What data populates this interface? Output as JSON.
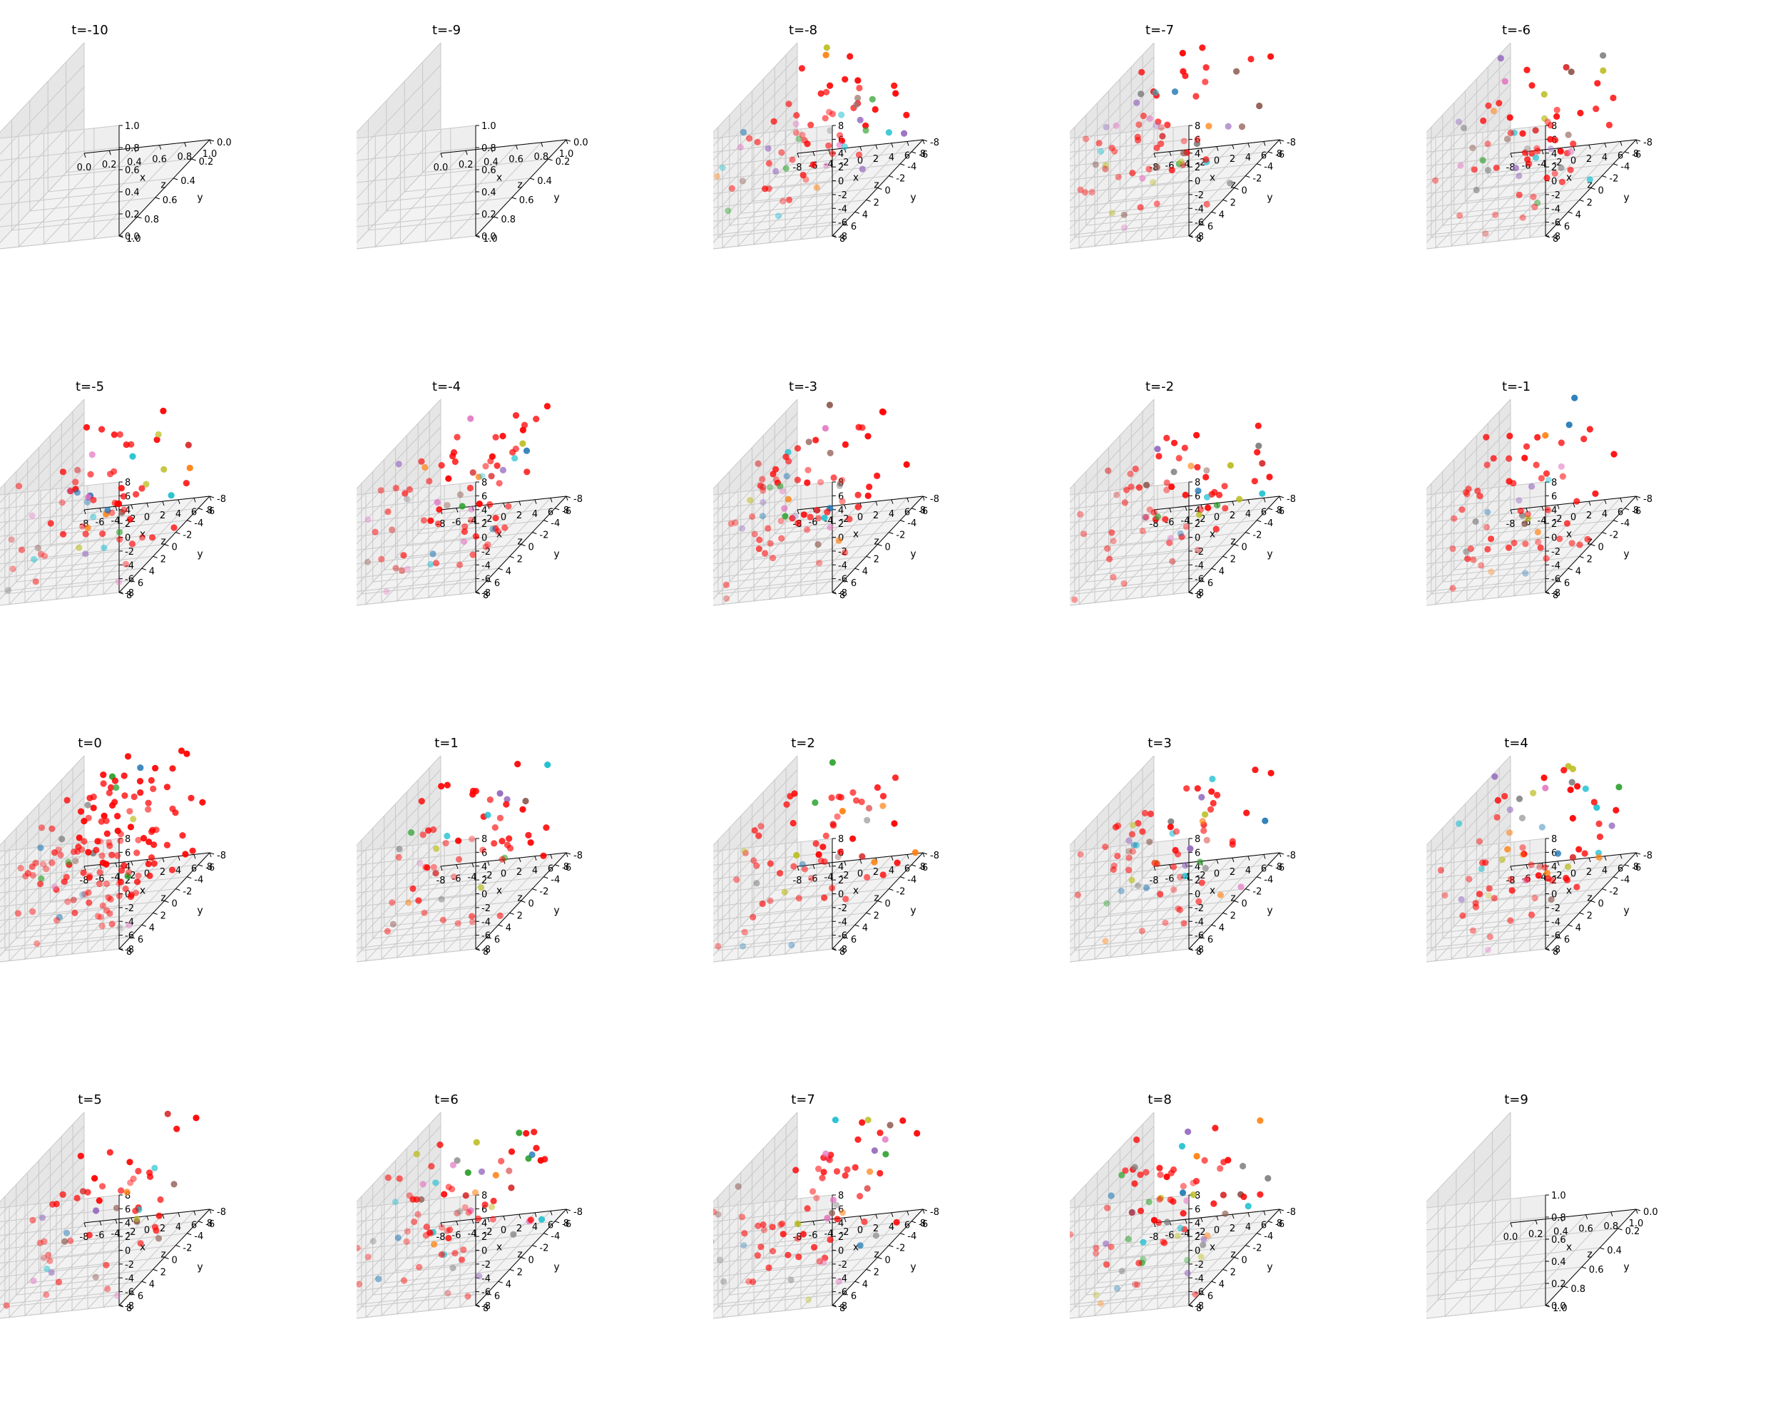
{
  "figure": {
    "layout": {
      "rows": 4,
      "cols": 5
    }
  },
  "colors": {
    "palette": [
      "#1f77b4",
      "#ff7f0e",
      "#2ca02c",
      "#d62728",
      "#9467bd",
      "#8c564b",
      "#e377c2",
      "#7f7f7f",
      "#bcbd22",
      "#17becf"
    ],
    "dominant": "#ff0000",
    "pane_left": "#e6e6e6",
    "pane_right": "#eeeeee",
    "pane_floor": "#f2f2f2",
    "grid_line": "#c8c8c8",
    "axis_line": "#000000"
  },
  "chart_data": [
    {
      "type": "scatter",
      "title": "t=-10",
      "xlabel": "x",
      "ylabel": "y",
      "zlabel": "z",
      "xlim": [
        0,
        1
      ],
      "ylim": [
        0,
        1
      ],
      "zlim": [
        0,
        1
      ],
      "xticks": [
        "0.0",
        "0.2",
        "0.4",
        "0.6",
        "0.8",
        "1.0"
      ],
      "yticks": [
        "0.0",
        "0.2",
        "0.4",
        "0.6",
        "0.8",
        "1.0"
      ],
      "zticks": [
        "0.0",
        "0.2",
        "0.4",
        "0.6",
        "0.8",
        "1.0"
      ],
      "grid": true,
      "legend": "none",
      "n_points": 0,
      "n_colored": 0,
      "seed": 101
    },
    {
      "type": "scatter",
      "title": "t=-9",
      "xlabel": "x",
      "ylabel": "y",
      "zlabel": "z",
      "xlim": [
        0,
        1
      ],
      "ylim": [
        0,
        1
      ],
      "zlim": [
        0,
        1
      ],
      "xticks": [
        "0.0",
        "0.2",
        "0.4",
        "0.6",
        "0.8",
        "1.0"
      ],
      "yticks": [
        "0.0",
        "0.2",
        "0.4",
        "0.6",
        "0.8",
        "1.0"
      ],
      "zticks": [
        "0.0",
        "0.2",
        "0.4",
        "0.6",
        "0.8",
        "1.0"
      ],
      "grid": true,
      "legend": "none",
      "n_points": 0,
      "n_colored": 0,
      "seed": 102
    },
    {
      "type": "scatter",
      "title": "t=-8",
      "xlabel": "x",
      "ylabel": "y",
      "zlabel": "z",
      "xlim": [
        -8,
        8
      ],
      "ylim": [
        -8,
        8
      ],
      "zlim": [
        -8,
        8
      ],
      "xticks": [
        "-8",
        "-6",
        "-4",
        "-2",
        "0",
        "2",
        "4",
        "6",
        "8"
      ],
      "yticks": [
        "-8",
        "-6",
        "-4",
        "-2",
        "0",
        "2",
        "4",
        "6",
        "8"
      ],
      "zticks": [
        "-8",
        "-6",
        "-4",
        "-2",
        "0",
        "2",
        "4",
        "6",
        "8"
      ],
      "grid": true,
      "legend": "none",
      "n_points": 72,
      "n_colored": 28,
      "seed": 103
    },
    {
      "type": "scatter",
      "title": "t=-7",
      "xlabel": "x",
      "ylabel": "y",
      "zlabel": "z",
      "xlim": [
        -8,
        8
      ],
      "ylim": [
        -8,
        8
      ],
      "zlim": [
        -8,
        8
      ],
      "xticks": [
        "-8",
        "-6",
        "-4",
        "-2",
        "0",
        "2",
        "4",
        "6",
        "8"
      ],
      "yticks": [
        "-8",
        "-6",
        "-4",
        "-2",
        "0",
        "2",
        "4",
        "6",
        "8"
      ],
      "zticks": [
        "-8",
        "-6",
        "-4",
        "-2",
        "0",
        "2",
        "4",
        "6",
        "8"
      ],
      "grid": true,
      "legend": "none",
      "n_points": 70,
      "n_colored": 32,
      "seed": 104
    },
    {
      "type": "scatter",
      "title": "t=-6",
      "xlabel": "x",
      "ylabel": "y",
      "zlabel": "z",
      "xlim": [
        -8,
        8
      ],
      "ylim": [
        -8,
        8
      ],
      "zlim": [
        -8,
        8
      ],
      "xticks": [
        "-8",
        "-6",
        "-4",
        "-2",
        "0",
        "2",
        "4",
        "6",
        "8"
      ],
      "yticks": [
        "-8",
        "-6",
        "-4",
        "-2",
        "0",
        "2",
        "4",
        "6",
        "8"
      ],
      "zticks": [
        "-8",
        "-6",
        "-4",
        "-2",
        "0",
        "2",
        "4",
        "6",
        "8"
      ],
      "grid": true,
      "legend": "none",
      "n_points": 72,
      "n_colored": 30,
      "seed": 105
    },
    {
      "type": "scatter",
      "title": "t=-5",
      "xlabel": "x",
      "ylabel": "y",
      "zlabel": "z",
      "xlim": [
        -8,
        8
      ],
      "ylim": [
        -8,
        8
      ],
      "zlim": [
        -8,
        8
      ],
      "xticks": [
        "-8",
        "-6",
        "-4",
        "-2",
        "0",
        "2",
        "4",
        "6",
        "8"
      ],
      "yticks": [
        "-8",
        "-6",
        "-4",
        "-2",
        "0",
        "2",
        "4",
        "6",
        "8"
      ],
      "zticks": [
        "-8",
        "-6",
        "-4",
        "-2",
        "0",
        "2",
        "4",
        "6",
        "8"
      ],
      "grid": true,
      "legend": "none",
      "n_points": 75,
      "n_colored": 30,
      "seed": 106
    },
    {
      "type": "scatter",
      "title": "t=-4",
      "xlabel": "x",
      "ylabel": "y",
      "zlabel": "z",
      "xlim": [
        -8,
        8
      ],
      "ylim": [
        -8,
        8
      ],
      "zlim": [
        -8,
        8
      ],
      "xticks": [
        "-8",
        "-6",
        "-4",
        "-2",
        "0",
        "2",
        "4",
        "6",
        "8"
      ],
      "yticks": [
        "-8",
        "-6",
        "-4",
        "-2",
        "0",
        "2",
        "4",
        "6",
        "8"
      ],
      "zticks": [
        "-8",
        "-6",
        "-4",
        "-2",
        "0",
        "2",
        "4",
        "6",
        "8"
      ],
      "grid": true,
      "legend": "none",
      "n_points": 80,
      "n_colored": 28,
      "seed": 107
    },
    {
      "type": "scatter",
      "title": "t=-3",
      "xlabel": "x",
      "ylabel": "y",
      "zlabel": "z",
      "xlim": [
        -8,
        8
      ],
      "ylim": [
        -8,
        8
      ],
      "zlim": [
        -8,
        8
      ],
      "xticks": [
        "-8",
        "-6",
        "-4",
        "-2",
        "0",
        "2",
        "4",
        "6",
        "8"
      ],
      "yticks": [
        "-8",
        "-6",
        "-4",
        "-2",
        "0",
        "2",
        "4",
        "6",
        "8"
      ],
      "zticks": [
        "-8",
        "-6",
        "-4",
        "-2",
        "0",
        "2",
        "4",
        "6",
        "8"
      ],
      "grid": true,
      "legend": "none",
      "n_points": 82,
      "n_colored": 28,
      "seed": 108
    },
    {
      "type": "scatter",
      "title": "t=-2",
      "xlabel": "x",
      "ylabel": "y",
      "zlabel": "z",
      "xlim": [
        -8,
        8
      ],
      "ylim": [
        -8,
        8
      ],
      "zlim": [
        -8,
        8
      ],
      "xticks": [
        "-8",
        "-6",
        "-4",
        "-2",
        "0",
        "2",
        "4",
        "6",
        "8"
      ],
      "yticks": [
        "-8",
        "-6",
        "-4",
        "-2",
        "0",
        "2",
        "4",
        "6",
        "8"
      ],
      "zticks": [
        "-8",
        "-6",
        "-4",
        "-2",
        "0",
        "2",
        "4",
        "6",
        "8"
      ],
      "grid": true,
      "legend": "none",
      "n_points": 70,
      "n_colored": 22,
      "seed": 109
    },
    {
      "type": "scatter",
      "title": "t=-1",
      "xlabel": "x",
      "ylabel": "y",
      "zlabel": "z",
      "xlim": [
        -8,
        8
      ],
      "ylim": [
        -8,
        8
      ],
      "zlim": [
        -8,
        8
      ],
      "xticks": [
        "-8",
        "-6",
        "-4",
        "-2",
        "0",
        "2",
        "4",
        "6",
        "8"
      ],
      "yticks": [
        "-8",
        "-6",
        "-4",
        "-2",
        "0",
        "2",
        "4",
        "6",
        "8"
      ],
      "zticks": [
        "-8",
        "-6",
        "-4",
        "-2",
        "0",
        "2",
        "4",
        "6",
        "8"
      ],
      "grid": true,
      "legend": "none",
      "n_points": 66,
      "n_colored": 16,
      "seed": 110
    },
    {
      "type": "scatter",
      "title": "t=0",
      "xlabel": "x",
      "ylabel": "y",
      "zlabel": "z",
      "xlim": [
        -8,
        8
      ],
      "ylim": [
        -8,
        8
      ],
      "zlim": [
        -8,
        8
      ],
      "xticks": [
        "-8",
        "-6",
        "-4",
        "-2",
        "0",
        "2",
        "4",
        "6",
        "8"
      ],
      "yticks": [
        "-8",
        "-6",
        "-4",
        "-2",
        "0",
        "2",
        "4",
        "6",
        "8"
      ],
      "zticks": [
        "-8",
        "-6",
        "-4",
        "-2",
        "0",
        "2",
        "4",
        "6",
        "8"
      ],
      "grid": true,
      "legend": "none",
      "n_points": 150,
      "n_colored": 18,
      "seed": 111
    },
    {
      "type": "scatter",
      "title": "t=1",
      "xlabel": "x",
      "ylabel": "y",
      "zlabel": "z",
      "xlim": [
        -8,
        8
      ],
      "ylim": [
        -8,
        8
      ],
      "zlim": [
        -8,
        8
      ],
      "xticks": [
        "-8",
        "-6",
        "-4",
        "-2",
        "0",
        "2",
        "4",
        "6",
        "8"
      ],
      "yticks": [
        "-8",
        "-6",
        "-4",
        "-2",
        "0",
        "2",
        "4",
        "6",
        "8"
      ],
      "zticks": [
        "-8",
        "-6",
        "-4",
        "-2",
        "0",
        "2",
        "4",
        "6",
        "8"
      ],
      "grid": true,
      "legend": "none",
      "n_points": 62,
      "n_colored": 16,
      "seed": 112
    },
    {
      "type": "scatter",
      "title": "t=2",
      "xlabel": "x",
      "ylabel": "y",
      "zlabel": "z",
      "xlim": [
        -8,
        8
      ],
      "ylim": [
        -8,
        8
      ],
      "zlim": [
        -8,
        8
      ],
      "xticks": [
        "-8",
        "-6",
        "-4",
        "-2",
        "0",
        "2",
        "4",
        "6",
        "8"
      ],
      "yticks": [
        "-8",
        "-6",
        "-4",
        "-2",
        "0",
        "2",
        "4",
        "6",
        "8"
      ],
      "zticks": [
        "-8",
        "-6",
        "-4",
        "-2",
        "0",
        "2",
        "4",
        "6",
        "8"
      ],
      "grid": true,
      "legend": "none",
      "n_points": 66,
      "n_colored": 18,
      "seed": 113
    },
    {
      "type": "scatter",
      "title": "t=3",
      "xlabel": "x",
      "ylabel": "y",
      "zlabel": "z",
      "xlim": [
        -8,
        8
      ],
      "ylim": [
        -8,
        8
      ],
      "zlim": [
        -8,
        8
      ],
      "xticks": [
        "-8",
        "-6",
        "-4",
        "-2",
        "0",
        "2",
        "4",
        "6",
        "8"
      ],
      "yticks": [
        "-8",
        "-6",
        "-4",
        "-2",
        "0",
        "2",
        "4",
        "6",
        "8"
      ],
      "zticks": [
        "-8",
        "-6",
        "-4",
        "-2",
        "0",
        "2",
        "4",
        "6",
        "8"
      ],
      "grid": true,
      "legend": "none",
      "n_points": 74,
      "n_colored": 28,
      "seed": 114
    },
    {
      "type": "scatter",
      "title": "t=4",
      "xlabel": "x",
      "ylabel": "y",
      "zlabel": "z",
      "xlim": [
        -8,
        8
      ],
      "ylim": [
        -8,
        8
      ],
      "zlim": [
        -8,
        8
      ],
      "xticks": [
        "-8",
        "-6",
        "-4",
        "-2",
        "0",
        "2",
        "4",
        "6",
        "8"
      ],
      "yticks": [
        "-8",
        "-6",
        "-4",
        "-2",
        "0",
        "2",
        "4",
        "6",
        "8"
      ],
      "zticks": [
        "-8",
        "-6",
        "-4",
        "-2",
        "0",
        "2",
        "4",
        "6",
        "8"
      ],
      "grid": true,
      "legend": "none",
      "n_points": 76,
      "n_colored": 32,
      "seed": 115
    },
    {
      "type": "scatter",
      "title": "t=5",
      "xlabel": "x",
      "ylabel": "y",
      "zlabel": "z",
      "xlim": [
        -8,
        8
      ],
      "ylim": [
        -8,
        8
      ],
      "zlim": [
        -8,
        8
      ],
      "xticks": [
        "-8",
        "-6",
        "-4",
        "-2",
        "0",
        "2",
        "4",
        "6",
        "8"
      ],
      "yticks": [
        "-8",
        "-6",
        "-4",
        "-2",
        "0",
        "2",
        "4",
        "6",
        "8"
      ],
      "zticks": [
        "-8",
        "-6",
        "-4",
        "-2",
        "0",
        "2",
        "4",
        "6",
        "8"
      ],
      "grid": true,
      "legend": "none",
      "n_points": 58,
      "n_colored": 20,
      "seed": 116
    },
    {
      "type": "scatter",
      "title": "t=6",
      "xlabel": "x",
      "ylabel": "y",
      "zlabel": "z",
      "xlim": [
        -8,
        8
      ],
      "ylim": [
        -8,
        8
      ],
      "zlim": [
        -8,
        8
      ],
      "xticks": [
        "-8",
        "-6",
        "-4",
        "-2",
        "0",
        "2",
        "4",
        "6",
        "8"
      ],
      "yticks": [
        "-8",
        "-6",
        "-4",
        "-2",
        "0",
        "2",
        "4",
        "6",
        "8"
      ],
      "zticks": [
        "-8",
        "-6",
        "-4",
        "-2",
        "0",
        "2",
        "4",
        "6",
        "8"
      ],
      "grid": true,
      "legend": "none",
      "n_points": 80,
      "n_colored": 34,
      "seed": 117
    },
    {
      "type": "scatter",
      "title": "t=7",
      "xlabel": "x",
      "ylabel": "y",
      "zlabel": "z",
      "xlim": [
        -8,
        8
      ],
      "ylim": [
        -8,
        8
      ],
      "zlim": [
        -8,
        8
      ],
      "xticks": [
        "-8",
        "-6",
        "-4",
        "-2",
        "0",
        "2",
        "4",
        "6",
        "8"
      ],
      "yticks": [
        "-8",
        "-6",
        "-4",
        "-2",
        "0",
        "2",
        "4",
        "6",
        "8"
      ],
      "zticks": [
        "-8",
        "-6",
        "-4",
        "-2",
        "0",
        "2",
        "4",
        "6",
        "8"
      ],
      "grid": true,
      "legend": "none",
      "n_points": 76,
      "n_colored": 28,
      "seed": 118
    },
    {
      "type": "scatter",
      "title": "t=8",
      "xlabel": "x",
      "ylabel": "y",
      "zlabel": "z",
      "xlim": [
        -8,
        8
      ],
      "ylim": [
        -8,
        8
      ],
      "zlim": [
        -8,
        8
      ],
      "xticks": [
        "-8",
        "-6",
        "-4",
        "-2",
        "0",
        "2",
        "4",
        "6",
        "8"
      ],
      "yticks": [
        "-8",
        "-6",
        "-4",
        "-2",
        "0",
        "2",
        "4",
        "6",
        "8"
      ],
      "zticks": [
        "-8",
        "-6",
        "-4",
        "-2",
        "0",
        "2",
        "4",
        "6",
        "8"
      ],
      "grid": true,
      "legend": "none",
      "n_points": 80,
      "n_colored": 38,
      "seed": 119
    },
    {
      "type": "scatter",
      "title": "t=9",
      "xlabel": "x",
      "ylabel": "y",
      "zlabel": "z",
      "xlim": [
        0,
        1
      ],
      "ylim": [
        0,
        1
      ],
      "zlim": [
        0,
        1
      ],
      "xticks": [
        "0.0",
        "0.2",
        "0.4",
        "0.6",
        "0.8",
        "1.0"
      ],
      "yticks": [
        "0.0",
        "0.2",
        "0.4",
        "0.6",
        "0.8",
        "1.0"
      ],
      "zticks": [
        "0.0",
        "0.2",
        "0.4",
        "0.6",
        "0.8",
        "1.0"
      ],
      "grid": true,
      "legend": "none",
      "n_points": 0,
      "n_colored": 0,
      "seed": 120
    }
  ]
}
